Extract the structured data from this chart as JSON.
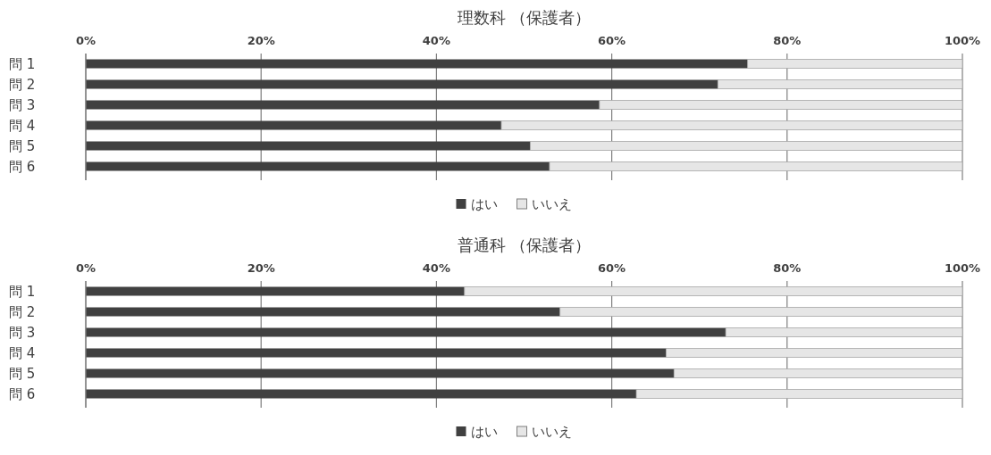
{
  "chart_data": [
    {
      "type": "bar",
      "orientation": "horizontal",
      "stacked": true,
      "title": "理数科 （保護者）",
      "categories": [
        "問 1",
        "問 2",
        "問 3",
        "問 4",
        "問 5",
        "問 6"
      ],
      "series": [
        {
          "name": "はい",
          "color": "#404040",
          "values": [
            75.5,
            72.1,
            58.6,
            47.4,
            50.7,
            52.9
          ]
        },
        {
          "name": "いいえ",
          "color": "#e6e6e6",
          "values": [
            24.5,
            27.9,
            41.4,
            52.6,
            49.3,
            47.1
          ]
        }
      ],
      "xlim": [
        0,
        100
      ],
      "xticks": [
        {
          "value": 0,
          "label": "0%"
        },
        {
          "value": 20,
          "label": "20%"
        },
        {
          "value": 40,
          "label": "40%"
        },
        {
          "value": 60,
          "label": "60%"
        },
        {
          "value": 80,
          "label": "80%"
        },
        {
          "value": 100,
          "label": "100%"
        }
      ],
      "grid": "x",
      "legend": "bottom"
    },
    {
      "type": "bar",
      "orientation": "horizontal",
      "stacked": true,
      "title": "普通科 （保護者）",
      "categories": [
        "問 1",
        "問 2",
        "問 3",
        "問 4",
        "問 5",
        "問 6"
      ],
      "series": [
        {
          "name": "はい",
          "color": "#404040",
          "values": [
            43.2,
            54.1,
            73.0,
            66.2,
            67.1,
            62.8
          ]
        },
        {
          "name": "いいえ",
          "color": "#e6e6e6",
          "values": [
            56.8,
            45.9,
            27.0,
            33.8,
            32.9,
            37.2
          ]
        }
      ],
      "xlim": [
        0,
        100
      ],
      "xticks": [
        {
          "value": 0,
          "label": "0%"
        },
        {
          "value": 20,
          "label": "20%"
        },
        {
          "value": 40,
          "label": "40%"
        },
        {
          "value": 60,
          "label": "60%"
        },
        {
          "value": 80,
          "label": "80%"
        },
        {
          "value": 100,
          "label": "100%"
        }
      ],
      "grid": "x",
      "legend": "bottom"
    }
  ]
}
